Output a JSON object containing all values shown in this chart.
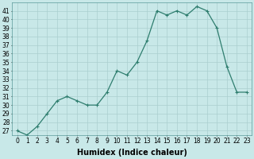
{
  "x": [
    0,
    1,
    2,
    3,
    4,
    5,
    6,
    7,
    8,
    9,
    10,
    11,
    12,
    13,
    14,
    15,
    16,
    17,
    18,
    19,
    20,
    21,
    22,
    23
  ],
  "y": [
    27,
    26.5,
    27.5,
    29,
    30.5,
    31,
    30.5,
    30,
    30,
    31.5,
    34,
    33.5,
    35,
    37.5,
    41,
    40.5,
    41,
    40.5,
    41.5,
    41,
    39,
    34.5,
    31.5,
    31.5
  ],
  "line_color": "#2e7d6e",
  "marker": "+",
  "marker_size": 3,
  "marker_linewidth": 0.8,
  "background_color": "#c8e8e8",
  "grid_color": "#aacfcf",
  "xlabel": "Humidex (Indice chaleur)",
  "xlabel_fontsize": 7,
  "ylim": [
    26.5,
    42
  ],
  "xlim": [
    -0.5,
    23.5
  ],
  "yticks": [
    27,
    28,
    29,
    30,
    31,
    32,
    33,
    34,
    35,
    36,
    37,
    38,
    39,
    40,
    41
  ],
  "xticks": [
    0,
    1,
    2,
    3,
    4,
    5,
    6,
    7,
    8,
    9,
    10,
    11,
    12,
    13,
    14,
    15,
    16,
    17,
    18,
    19,
    20,
    21,
    22,
    23
  ],
  "tick_fontsize": 5.5,
  "line_width": 0.9
}
